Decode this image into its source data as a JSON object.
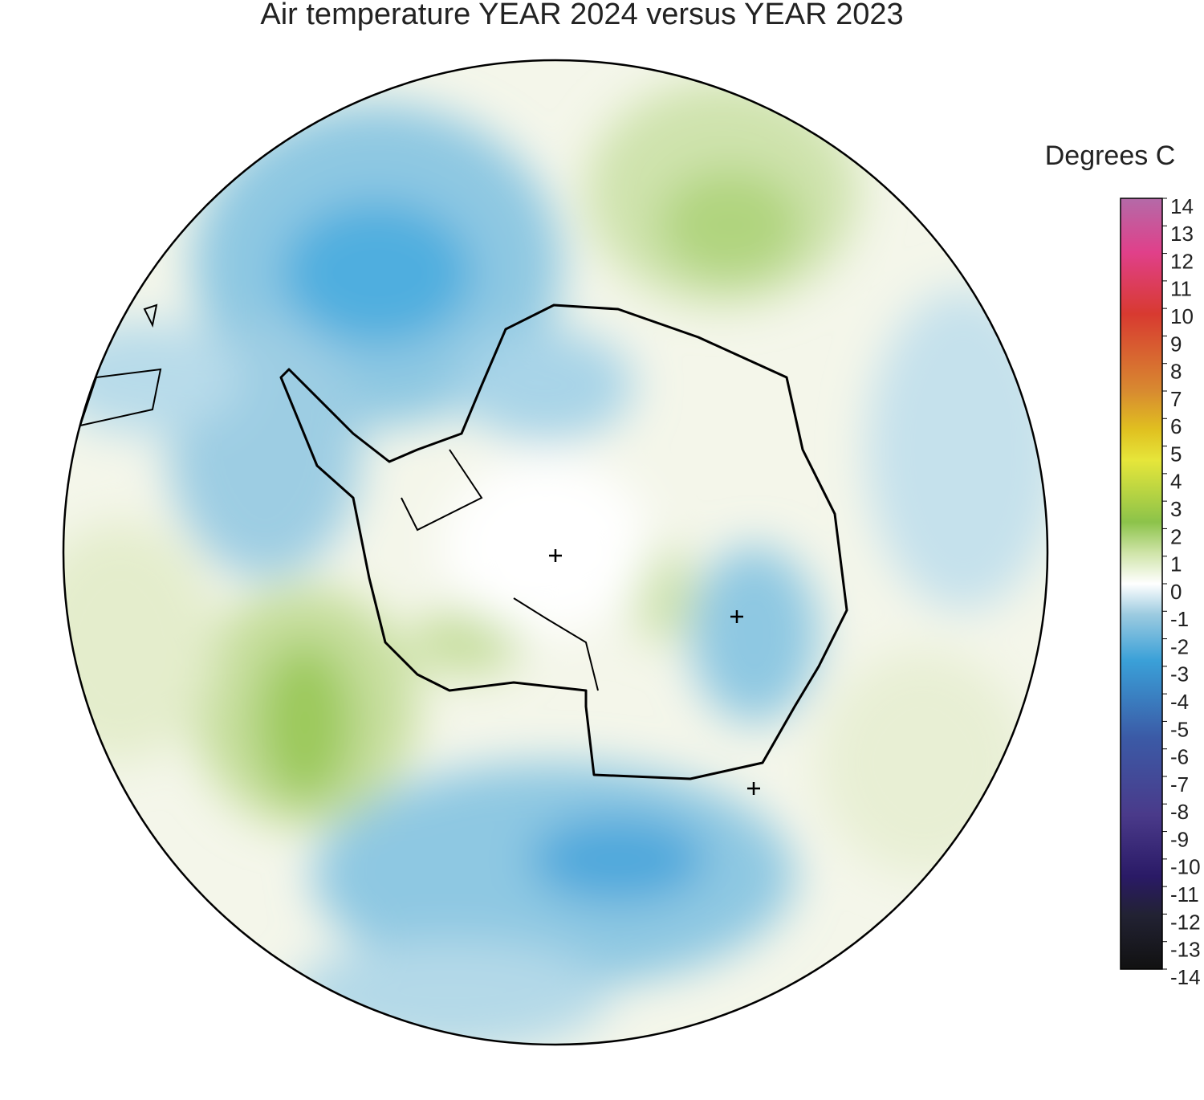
{
  "title": "Air temperature YEAR 2024 versus YEAR 2023",
  "colorbar": {
    "label": "Degrees C",
    "range": [
      -14,
      14
    ],
    "ticks": [
      14,
      13,
      12,
      11,
      10,
      9,
      8,
      7,
      6,
      5,
      4,
      3,
      2,
      1,
      0,
      -1,
      -2,
      -3,
      -4,
      -5,
      -6,
      -7,
      -8,
      -9,
      -10,
      -11,
      -12,
      -13,
      -14
    ]
  }
}
